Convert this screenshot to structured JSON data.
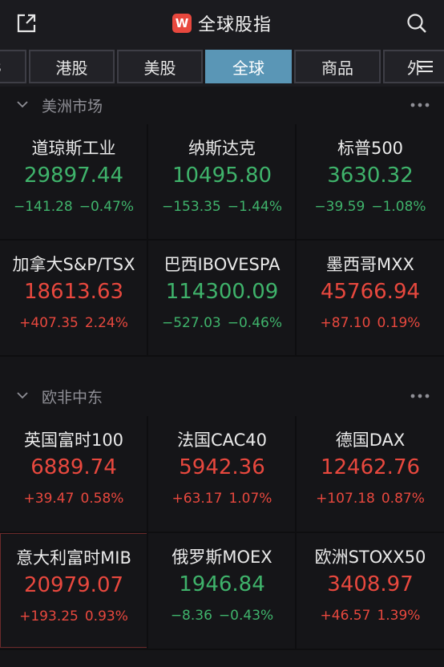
{
  "header": {
    "logo_letter": "W",
    "title": "全球股指",
    "share_icon": "share-icon",
    "search_icon": "search-icon"
  },
  "tabs": [
    {
      "label": "s"
    },
    {
      "label": "港股"
    },
    {
      "label": "美股"
    },
    {
      "label": "全球",
      "active": true
    },
    {
      "label": "商品"
    },
    {
      "label": "外"
    }
  ],
  "sections": [
    {
      "label": "美洲市场"
    },
    {
      "label": "欧非中东"
    }
  ],
  "americas": [
    {
      "name": "道琼斯工业",
      "price": "29897.44",
      "change": "−141.28",
      "pct": "−0.47%",
      "dir": "down"
    },
    {
      "name": "纳斯达克",
      "price": "10495.80",
      "change": "−153.35",
      "pct": "−1.44%",
      "dir": "down"
    },
    {
      "name": "标普500",
      "price": "3630.32",
      "change": "−39.59",
      "pct": "−1.08%",
      "dir": "down"
    },
    {
      "name": "加拿大S&P/TSX",
      "price": "18613.63",
      "change": "+407.35",
      "pct": "2.24%",
      "dir": "up"
    },
    {
      "name": "巴西IBOVESPA",
      "price": "114300.09",
      "change": "−527.03",
      "pct": "−0.46%",
      "dir": "down"
    },
    {
      "name": "墨西哥MXX",
      "price": "45766.94",
      "change": "+87.10",
      "pct": "0.19%",
      "dir": "up"
    }
  ],
  "emea": [
    {
      "name": "英国富时100",
      "price": "6889.74",
      "change": "+39.47",
      "pct": "0.58%",
      "dir": "up"
    },
    {
      "name": "法国CAC40",
      "price": "5942.36",
      "change": "+63.17",
      "pct": "1.07%",
      "dir": "up"
    },
    {
      "name": "德国DAX",
      "price": "12462.76",
      "change": "+107.18",
      "pct": "0.87%",
      "dir": "up"
    },
    {
      "name": "意大利富时MIB",
      "price": "20979.07",
      "change": "+193.25",
      "pct": "0.93%",
      "dir": "up"
    },
    {
      "name": "俄罗斯MOEX",
      "price": "1946.84",
      "change": "−8.36",
      "pct": "−0.43%",
      "dir": "down"
    },
    {
      "name": "欧洲STOXX50",
      "price": "3408.97",
      "change": "+46.57",
      "pct": "1.39%",
      "dir": "up"
    }
  ],
  "colors": {
    "up": "#e8483e",
    "down": "#3fb36b",
    "accent_tab": "#5a96b6",
    "background": "#151518"
  }
}
